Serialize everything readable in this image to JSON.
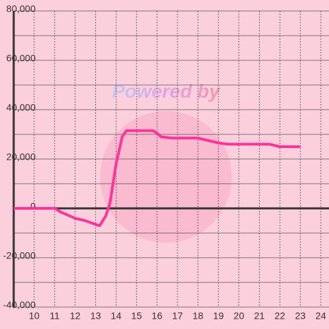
{
  "watermark": "Powered by",
  "chart_data": {
    "type": "line",
    "x": [
      9,
      11,
      11.3,
      12,
      12.5,
      13,
      13.2,
      13.5,
      13.7,
      14,
      14.3,
      14.5,
      15,
      15.8,
      16,
      16.2,
      16.7,
      18,
      18.5,
      19,
      19.5,
      21.5,
      22,
      23
    ],
    "series": [
      {
        "color": "#ff3399",
        "values": [
          0,
          0,
          -1500,
          -4000,
          -5000,
          -6500,
          -7000,
          -3000,
          2000,
          18000,
          29000,
          31500,
          31500,
          31500,
          30500,
          29000,
          28500,
          28500,
          27500,
          26500,
          26000,
          26000,
          25000,
          25000
        ]
      }
    ],
    "xlim": [
      9,
      24.4
    ],
    "xticks": [
      10,
      11,
      12,
      13,
      14,
      15,
      16,
      17,
      18,
      19,
      20,
      21,
      22,
      23,
      24
    ],
    "ylim": [
      -40000,
      80000
    ],
    "yticks": [
      {
        "value": -40000,
        "label": "-40,000"
      },
      {
        "value": -20000,
        "label": "-20,000"
      },
      0,
      {
        "value": 20000,
        "label": "20,000"
      },
      {
        "value": 40000,
        "label": "40,000"
      },
      {
        "value": 60000,
        "label": "60,000"
      },
      {
        "value": 80000,
        "label": "80,000"
      }
    ],
    "ygrid": [
      -30000,
      -10000,
      10000,
      30000,
      50000,
      70000
    ],
    "grid": true
  }
}
